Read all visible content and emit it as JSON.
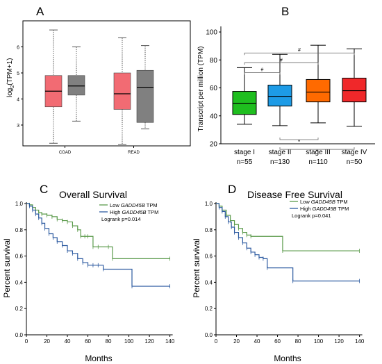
{
  "colors": {
    "box_red": "#f26b73",
    "box_grey": "#808080",
    "stage_colors": [
      "#1fbe1f",
      "#1d9be6",
      "#ff6a00",
      "#f0282a"
    ],
    "survival_low": "#5a9a4a",
    "survival_high": "#2c5aa0"
  },
  "panel_a": {
    "letter": "A",
    "ylabel_main": "log",
    "ylabel_sub": "2",
    "ylabel_rest": "(TPM+1)"
  },
  "panel_b": {
    "letter": "B",
    "ylabel": "Transcript per million (TPM)",
    "counts": [
      "n=55",
      "n=130",
      "n=110",
      "n=50"
    ],
    "sig_top": [
      "#",
      "#",
      "#"
    ],
    "sig_bottom": [
      "*",
      "*"
    ]
  },
  "panel_c": {
    "letter": "C",
    "title": "Overall Survival",
    "ylabel": "Percent survival",
    "xlabel": "Months",
    "legend_low_prefix": "Low ",
    "legend_gene": "GADD45B",
    "legend_low_suffix": " TPM",
    "legend_high_prefix": "High ",
    "legend_high_suffix": " TPM",
    "logrank": "Logrank p=0.014"
  },
  "panel_d": {
    "letter": "D",
    "title": "Disease Free Survival",
    "ylabel": "Percent survival",
    "xlabel": "Months",
    "legend_low_prefix": "Low ",
    "legend_gene": "GADD45B",
    "legend_low_suffix": " TPM",
    "legend_high_prefix": "High ",
    "legend_high_suffix": " TPM",
    "logrank": "Logrank p=0.041"
  },
  "chart_data": [
    {
      "type": "box",
      "panel": "A",
      "ylabel": "log2(TPM+1)",
      "categories": [
        "COAD",
        "READ"
      ],
      "yticks": [
        3,
        4,
        5,
        6
      ],
      "ylim": [
        2.2,
        7.0
      ],
      "series": [
        {
          "name": "",
          "boxes": [
            {
              "min": 2.3,
              "q1": 3.7,
              "median": 4.3,
              "q3": 4.9,
              "max": 6.65
            },
            {
              "min": 2.25,
              "q1": 3.6,
              "median": 4.2,
              "q3": 5.0,
              "max": 6.35
            }
          ]
        },
        {
          "name": "",
          "boxes": [
            {
              "min": 3.15,
              "q1": 4.15,
              "median": 4.5,
              "q3": 4.9,
              "max": 6.0
            },
            {
              "min": 2.85,
              "q1": 3.1,
              "median": 4.45,
              "q3": 5.1,
              "max": 6.05
            }
          ]
        }
      ]
    },
    {
      "type": "box",
      "panel": "B",
      "ylabel": "Transcript per million (TPM)",
      "categories": [
        "stage I",
        "stage II",
        "stage III",
        "stage IV"
      ],
      "yticks": [
        20,
        40,
        60,
        80,
        100
      ],
      "ylim": [
        20,
        104
      ],
      "boxes": [
        {
          "min": 34,
          "q1": 41,
          "median": 49,
          "q3": 57.5,
          "max": 74.5
        },
        {
          "min": 33,
          "q1": 47,
          "median": 54,
          "q3": 62,
          "max": 84
        },
        {
          "min": 35,
          "q1": 50,
          "median": 57,
          "q3": 66,
          "max": 90.5
        },
        {
          "min": 32.5,
          "q1": 50,
          "median": 58,
          "q3": 67,
          "max": 88
        }
      ],
      "comparisons_top": [
        {
          "from": 0,
          "to": 1,
          "level": 71,
          "label": "#"
        },
        {
          "from": 0,
          "to": 2,
          "level": 78,
          "label": "#"
        },
        {
          "from": 0,
          "to": 3,
          "level": 85,
          "label": "#"
        }
      ],
      "comparisons_bottom": [
        {
          "from": 1,
          "to": 2,
          "level": 23,
          "label": "*"
        },
        {
          "from": 1,
          "to": 3,
          "level": 16,
          "label": "*"
        }
      ]
    },
    {
      "type": "line",
      "panel": "C",
      "title": "Overall Survival",
      "xlabel": "Months",
      "ylabel": "Percent survival",
      "xlim": [
        0,
        145
      ],
      "ylim": [
        0,
        1.0
      ],
      "xticks": [
        0,
        20,
        40,
        60,
        80,
        100,
        120,
        140
      ],
      "yticks": [
        0.0,
        0.2,
        0.4,
        0.6,
        0.8,
        1.0
      ],
      "series": [
        {
          "name": "Low GADD45B TPM",
          "x": [
            0,
            3,
            6,
            9,
            12,
            15,
            20,
            25,
            30,
            35,
            40,
            45,
            50,
            53,
            57,
            60,
            65,
            70,
            80,
            84,
            140
          ],
          "y": [
            1.0,
            0.99,
            0.97,
            0.95,
            0.93,
            0.92,
            0.91,
            0.9,
            0.88,
            0.87,
            0.86,
            0.83,
            0.8,
            0.75,
            0.75,
            0.75,
            0.67,
            0.67,
            0.67,
            0.58,
            0.58
          ]
        },
        {
          "name": "High GADD45B TPM",
          "x": [
            0,
            3,
            6,
            9,
            12,
            15,
            18,
            22,
            26,
            30,
            35,
            40,
            45,
            50,
            55,
            60,
            65,
            70,
            75,
            103,
            140
          ],
          "y": [
            1.0,
            0.98,
            0.95,
            0.92,
            0.89,
            0.85,
            0.81,
            0.77,
            0.74,
            0.71,
            0.68,
            0.64,
            0.62,
            0.58,
            0.55,
            0.53,
            0.53,
            0.53,
            0.5,
            0.37,
            0.37
          ]
        }
      ]
    },
    {
      "type": "line",
      "panel": "D",
      "title": "Disease Free Survival",
      "xlabel": "Months",
      "ylabel": "Percent survival",
      "xlim": [
        0,
        145
      ],
      "ylim": [
        0,
        1.0
      ],
      "xticks": [
        0,
        20,
        40,
        60,
        80,
        100,
        120,
        140
      ],
      "yticks": [
        0.0,
        0.2,
        0.4,
        0.6,
        0.8,
        1.0
      ],
      "series": [
        {
          "name": "Low GADD45B TPM",
          "x": [
            0,
            3,
            6,
            10,
            14,
            18,
            22,
            26,
            30,
            34,
            65,
            140
          ],
          "y": [
            1.0,
            0.98,
            0.95,
            0.91,
            0.87,
            0.84,
            0.81,
            0.78,
            0.76,
            0.75,
            0.64,
            0.64
          ]
        },
        {
          "name": "High GADD45B TPM",
          "x": [
            0,
            3,
            6,
            9,
            12,
            15,
            18,
            22,
            26,
            30,
            34,
            38,
            42,
            46,
            50,
            75,
            140
          ],
          "y": [
            1.0,
            0.97,
            0.94,
            0.9,
            0.86,
            0.82,
            0.78,
            0.74,
            0.7,
            0.66,
            0.63,
            0.61,
            0.59,
            0.58,
            0.51,
            0.41,
            0.41
          ]
        }
      ]
    }
  ]
}
